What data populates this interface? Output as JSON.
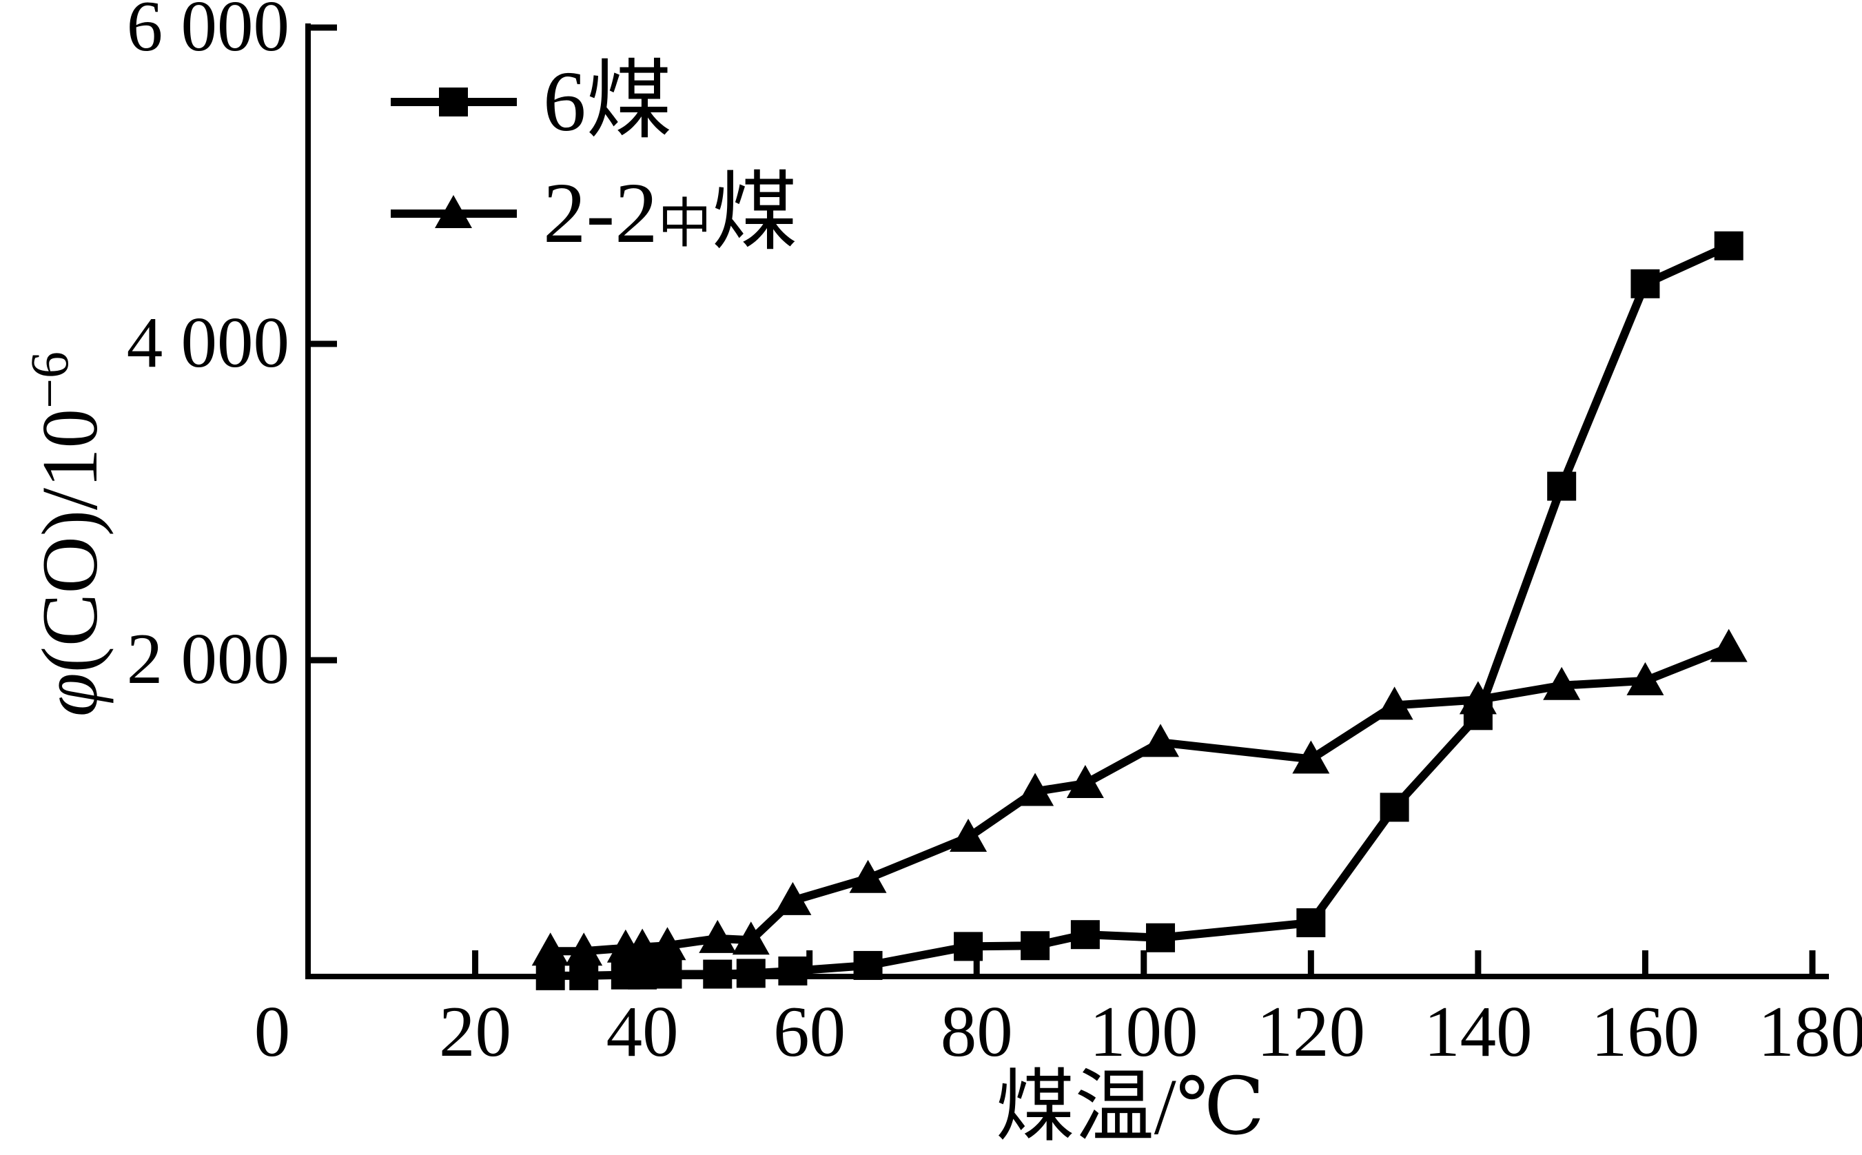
{
  "chart_data": {
    "type": "line",
    "title": "",
    "xlabel": "煤温/℃",
    "ylabel": "φ(CO)/10⁻⁶",
    "ylabel_parts": {
      "italic": "φ",
      "main": "(CO)/10",
      "sup": "−6"
    },
    "xlim": [
      0,
      180
    ],
    "ylim": [
      0,
      6000
    ],
    "xticks": [
      0,
      20,
      40,
      60,
      80,
      100,
      120,
      140,
      160,
      180
    ],
    "xtick_labels": [
      "0",
      "20",
      "40",
      "60",
      "80",
      "100",
      "120",
      "140",
      "160",
      "180"
    ],
    "yticks": [
      2000,
      4000,
      6000
    ],
    "ytick_labels": [
      "2 000",
      "4 000",
      "6 000"
    ],
    "grid": false,
    "legend_position": "top-left",
    "colors": {
      "foreground": "#000000",
      "background": "#ffffff"
    },
    "x": [
      29,
      33,
      38,
      40,
      43,
      49,
      53,
      58,
      67,
      79,
      87,
      93,
      102,
      120,
      130,
      140,
      150,
      160,
      170
    ],
    "series": [
      {
        "name": "6煤",
        "marker": "square",
        "values": [
          5,
          5,
          10,
          10,
          15,
          15,
          20,
          35,
          70,
          190,
          195,
          265,
          245,
          340,
          1070,
          1650,
          3100,
          4380,
          4620
        ]
      },
      {
        "name": "2-2中煤",
        "marker": "triangle",
        "name_parts": {
          "pre": "2-2",
          "sub": "中",
          "post": "煤"
        },
        "values": [
          160,
          160,
          180,
          185,
          195,
          240,
          230,
          480,
          620,
          880,
          1170,
          1220,
          1480,
          1375,
          1715,
          1750,
          1840,
          1870,
          2080
        ]
      }
    ],
    "legend": {
      "items": [
        {
          "label": "6煤",
          "marker": "square"
        },
        {
          "label": "2-2中煤",
          "marker": "triangle"
        }
      ]
    }
  }
}
